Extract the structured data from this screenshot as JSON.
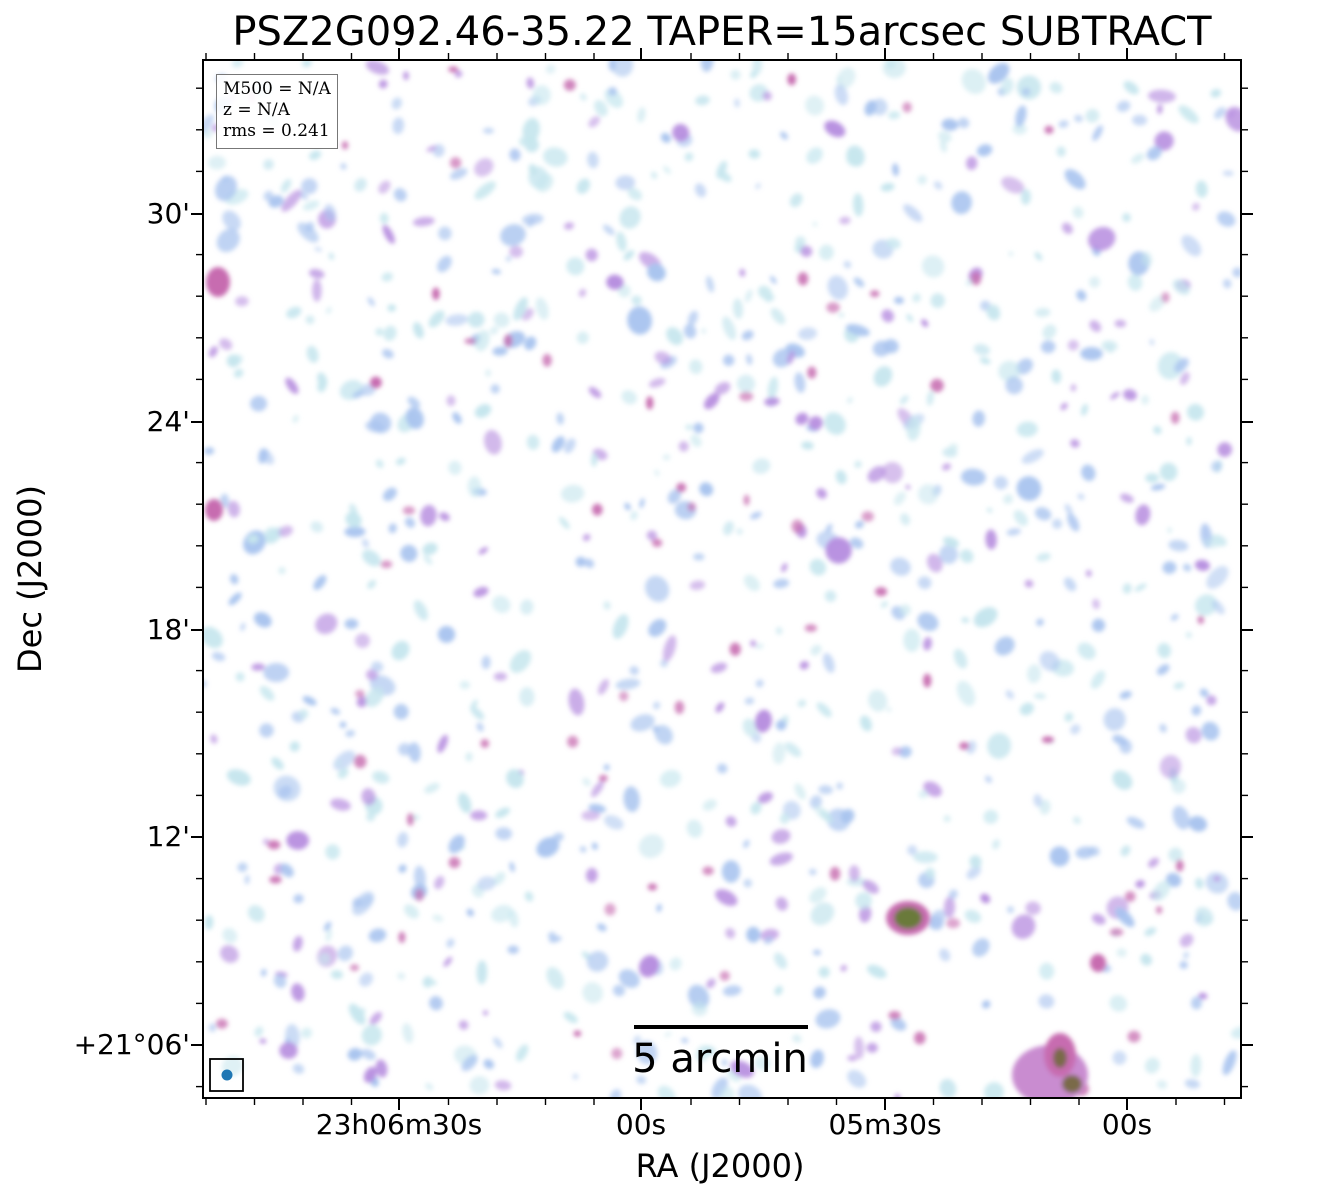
{
  "figure": {
    "title": "PSZ2G092.46-35.22 TAPER=15arcsec SUBTRACT",
    "info": {
      "m500": "M500 = N/A",
      "z": "z = N/A",
      "rms": "rms = 0.241"
    },
    "xaxis": {
      "label": "RA (J2000)",
      "ticks": [
        "23h06m30s",
        "00s",
        "05m30s",
        "00s"
      ]
    },
    "yaxis": {
      "label": "Dec (J2000)",
      "ticks": [
        "30'",
        "24'",
        "18'",
        "12'",
        "+21°06'"
      ]
    },
    "scalebar": {
      "label": "5 arcmin"
    },
    "beam_icon": "beam-ellipse-icon",
    "colors": {
      "noise_light": "#c6e6ee",
      "noise_mid": "#a9c4ef",
      "noise_strong": "#b890e0",
      "peak": "#c76cb0",
      "source_core": "#6b7a3a",
      "beam": "#1f77b4"
    }
  }
}
